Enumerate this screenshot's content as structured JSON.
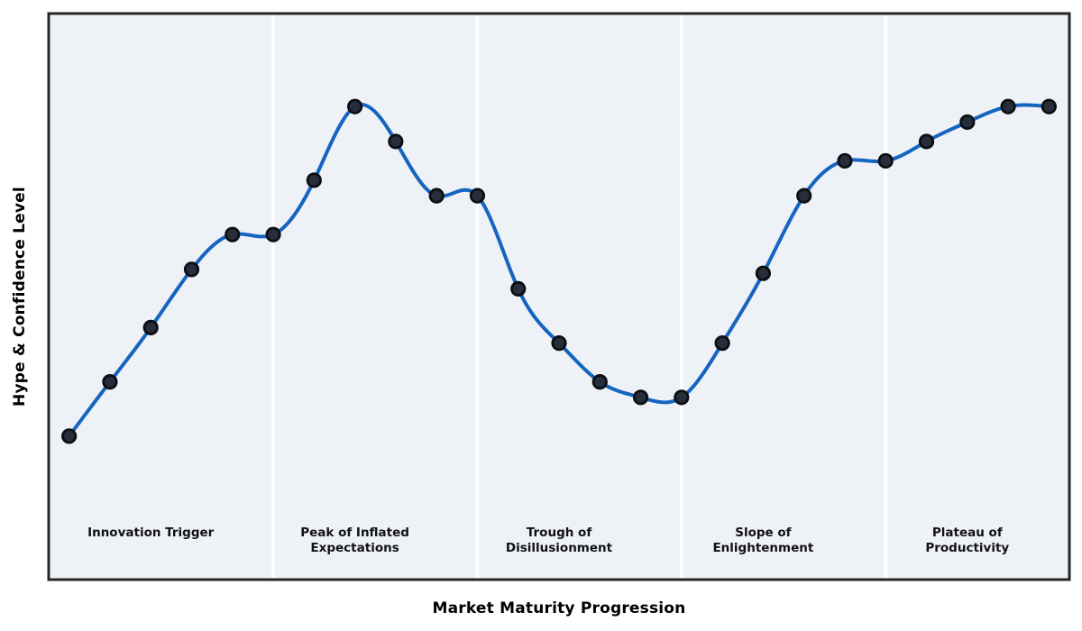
{
  "chart_data": {
    "type": "line",
    "title": "",
    "xlabel": "Market Maturity Progression",
    "ylabel": "Hype & Confidence Level",
    "x": [
      0,
      1,
      2,
      3,
      4,
      5,
      6,
      7,
      8,
      9,
      10,
      11,
      12,
      13,
      14,
      15,
      16,
      17,
      18,
      19,
      20,
      21,
      22,
      23,
      24
    ],
    "series": [
      {
        "name": "Hype & Confidence",
        "values": [
          10,
          24,
          38,
          53,
          62,
          62,
          76,
          95,
          86,
          72,
          72,
          48,
          34,
          24,
          20,
          20,
          34,
          52,
          72,
          81,
          81,
          86,
          91,
          95,
          95
        ]
      }
    ],
    "xlim": [
      -0.5,
      24.5
    ],
    "ylim": [
      -27,
      119
    ],
    "grid": false,
    "legend": "none",
    "ticks": "none",
    "phase_boundaries_x": [
      5,
      10,
      15,
      20
    ],
    "phases": [
      {
        "label": "Innovation Trigger",
        "lines": [
          "Innovation Trigger"
        ],
        "x_center": 2
      },
      {
        "label": "Peak of Inflated Expectations",
        "lines": [
          "Peak of Inflated",
          "Expectations"
        ],
        "x_center": 7
      },
      {
        "label": "Trough of Disillusionment",
        "lines": [
          "Trough of",
          "Disillusionment"
        ],
        "x_center": 12
      },
      {
        "label": "Slope of Enlightenment",
        "lines": [
          "Slope of",
          "Enlightenment"
        ],
        "x_center": 17
      },
      {
        "label": "Plateau of Productivity",
        "lines": [
          "Plateau of",
          "Productivity"
        ],
        "x_center": 22
      }
    ]
  },
  "colors": {
    "line": "#1565c0",
    "marker_fill": "#262e3b",
    "marker_edge": "#0b0f14",
    "panel_background": "#eef2f7",
    "divider": "#ffffff",
    "border": "#262626",
    "label_text": "#111111",
    "figure_background": "#ffffff"
  }
}
